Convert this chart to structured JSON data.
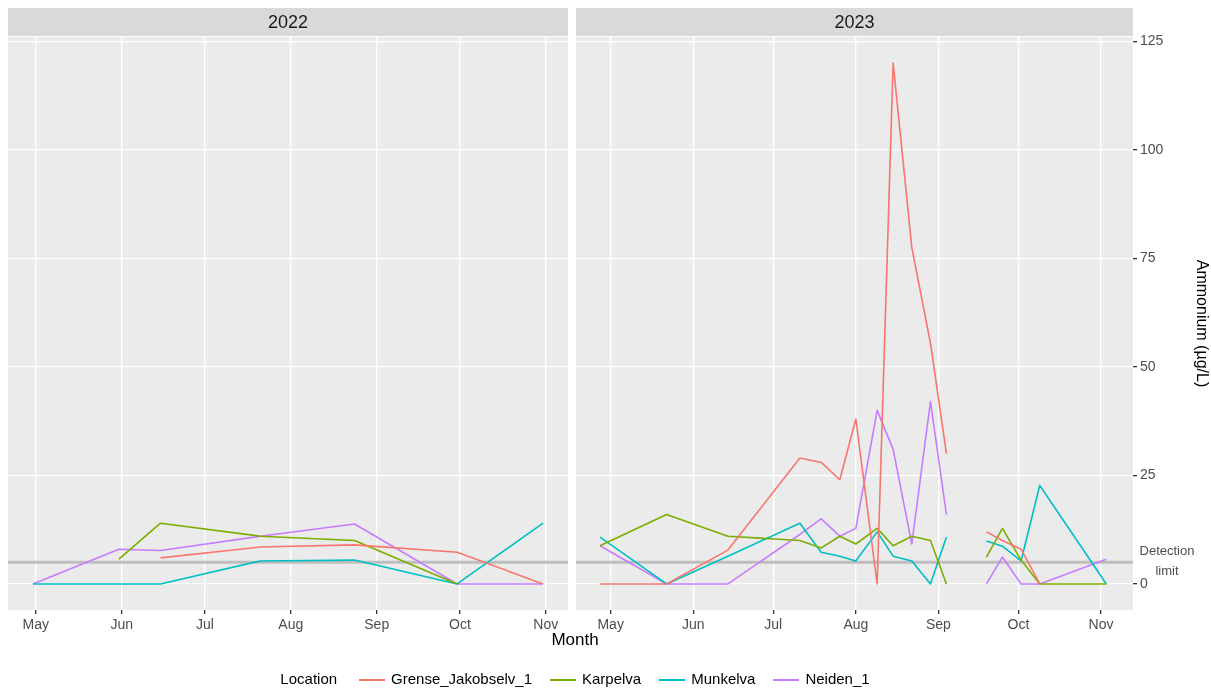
{
  "chart_data": [
    {
      "type": "line",
      "title": "2022",
      "xlabel": "Month",
      "legend": "bottom",
      "legend_title": "Location",
      "tick_labels": "x",
      "grid": true,
      "x": [
        "2022-04-30",
        "2022-05-31",
        "2022-06-15",
        "2022-07-21",
        "2022-08-24",
        "2022-09-30",
        "2022-10-31"
      ],
      "xlim": [
        "2022-04-21",
        "2022-11-09"
      ],
      "xticks": [
        {
          "value": "2022-05-01",
          "label": "May"
        },
        {
          "value": "2022-06-01",
          "label": "Jun"
        },
        {
          "value": "2022-07-01",
          "label": "Jul"
        },
        {
          "value": "2022-08-01",
          "label": "Aug"
        },
        {
          "value": "2022-09-01",
          "label": "Sep"
        },
        {
          "value": "2022-10-01",
          "label": "Oct"
        },
        {
          "value": "2022-11-01",
          "label": "Nov"
        }
      ],
      "ylim": [
        -6,
        126
      ],
      "yticks": [
        0,
        25,
        50,
        75,
        100,
        125
      ],
      "ref_lines": [
        {
          "axis": "y",
          "value": 5,
          "color": "#bebebe"
        }
      ],
      "series": [
        {
          "name": "Grense_Jakobselv_1",
          "color": "#f8766d",
          "values": [
            null,
            null,
            6,
            8.5,
            9,
            7.3,
            0
          ]
        },
        {
          "name": "Karpelva",
          "color": "#7cae00",
          "values": [
            null,
            5.7,
            14,
            11,
            10,
            0,
            null
          ]
        },
        {
          "name": "Munkelva",
          "color": "#00bfc4",
          "values": [
            0,
            0,
            0,
            5.3,
            5.5,
            0,
            14
          ]
        },
        {
          "name": "Neiden_1",
          "color": "#c77cff",
          "values": [
            0,
            8,
            7.7,
            11,
            13.8,
            0,
            0
          ]
        }
      ]
    },
    {
      "type": "line",
      "title": "2023",
      "ylabel": "Ammonium (µg/L)",
      "grid": true,
      "x": [
        "2023-04-27",
        "2023-05-22",
        "2023-06-14",
        "2023-07-11",
        "2023-07-19",
        "2023-07-26",
        "2023-08-01",
        "2023-08-09",
        "2023-08-15",
        "2023-08-22",
        "2023-08-29",
        "2023-09-04",
        "2023-09-12",
        "2023-09-19",
        "2023-09-25",
        "2023-10-02",
        "2023-10-09",
        "2023-11-03"
      ],
      "xlim": [
        "2023-04-18",
        "2023-11-13"
      ],
      "xticks": [
        {
          "value": "2023-05-01",
          "label": "May"
        },
        {
          "value": "2023-06-01",
          "label": "Jun"
        },
        {
          "value": "2023-07-01",
          "label": "Jul"
        },
        {
          "value": "2023-08-01",
          "label": "Aug"
        },
        {
          "value": "2023-09-01",
          "label": "Sep"
        },
        {
          "value": "2023-10-01",
          "label": "Oct"
        },
        {
          "value": "2023-11-01",
          "label": "Nov"
        }
      ],
      "ylim": [
        -6,
        126
      ],
      "yticks": [
        0,
        25,
        50,
        75,
        100,
        125
      ],
      "ref_lines": [
        {
          "axis": "y",
          "value": 5,
          "label": "Detection limit",
          "color": "#bebebe"
        }
      ],
      "series": [
        {
          "color": "#f8766d",
          "values": [
            0,
            0,
            7.8,
            29,
            28,
            24,
            38,
            0,
            120,
            77.5,
            55.5,
            30,
            null,
            12,
            10,
            8,
            0,
            null
          ]
        },
        {
          "color": "#7cae00",
          "values": [
            8.8,
            16,
            11,
            10,
            8.3,
            11,
            9.2,
            12.8,
            8.8,
            11,
            10,
            0,
            null,
            6.2,
            12.8,
            5.5,
            0,
            0
          ]
        },
        {
          "color": "#00bfc4",
          "values": [
            10.8,
            0,
            6.4,
            14,
            7.3,
            6.4,
            5.3,
            12,
            6.4,
            5.3,
            0,
            10.8,
            null,
            9.9,
            8.7,
            5.3,
            22.7,
            0
          ]
        },
        {
          "color": "#c77cff",
          "values": [
            8.8,
            0,
            0,
            11.4,
            15,
            11,
            12.8,
            40,
            31,
            9.2,
            42,
            16,
            null,
            0,
            6.2,
            0,
            0,
            5.7
          ]
        }
      ]
    }
  ]
}
